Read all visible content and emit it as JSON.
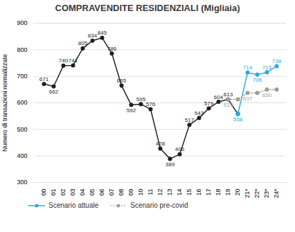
{
  "chart_data": {
    "type": "line",
    "title": "COMPRAVENDITE RESIDENZIALI (Migliaia)",
    "ylabel": "Numero di transazioni normalizzate",
    "categories": [
      "00",
      "01",
      "02",
      "03",
      "04",
      "05",
      "06",
      "07",
      "08",
      "09",
      "10",
      "11",
      "12",
      "13",
      "14",
      "15",
      "16",
      "17",
      "18",
      "19",
      "20",
      "21*",
      "22*",
      "23*",
      "24*"
    ],
    "ylim": [
      300,
      900
    ],
    "yticks": [
      300,
      400,
      500,
      600,
      700,
      800,
      900
    ],
    "grid": true,
    "legend": "bottom",
    "data_labels": true,
    "series": [
      {
        "color": "#231f20",
        "marker": "circle",
        "line_style": "solid",
        "values": [
          671,
          662,
          740,
          741,
          805,
          834,
          845,
          786,
          665,
          592,
          595,
          576,
          428,
          389,
          406,
          517,
          543,
          579,
          604,
          613,
          558,
          null,
          null,
          null,
          null
        ],
        "value_labels": [
          "671",
          "662",
          "740",
          "741",
          "805",
          "834",
          "845",
          "786",
          "665",
          "592",
          "595",
          "576",
          "428",
          "389",
          "406",
          "517",
          "543",
          "579",
          "604",
          "613",
          null,
          null,
          null,
          null,
          null
        ]
      },
      {
        "name": "Scenario attuale",
        "color": "#29abe2",
        "marker": "circle",
        "line_style": "solid",
        "values": [
          null,
          null,
          null,
          null,
          null,
          null,
          null,
          null,
          null,
          null,
          null,
          null,
          null,
          null,
          null,
          null,
          null,
          null,
          null,
          null,
          558,
          714,
          706,
          715,
          738
        ],
        "value_labels": [
          null,
          null,
          null,
          null,
          null,
          null,
          null,
          null,
          null,
          null,
          null,
          null,
          null,
          null,
          null,
          null,
          null,
          null,
          null,
          null,
          "558",
          "714",
          "706",
          "715",
          "738"
        ]
      },
      {
        "name": "Scenario pre-covid",
        "color": "#9d9d9c",
        "marker": "circle",
        "line_style": "dotted",
        "values": [
          null,
          null,
          null,
          null,
          null,
          null,
          null,
          null,
          null,
          null,
          null,
          null,
          null,
          null,
          null,
          null,
          null,
          null,
          null,
          613,
          613,
          637,
          637,
          650,
          650
        ],
        "value_labels": [
          null,
          null,
          null,
          null,
          null,
          null,
          null,
          null,
          null,
          null,
          null,
          null,
          null,
          null,
          null,
          null,
          null,
          null,
          null,
          "613",
          null,
          "637",
          null,
          "650",
          null
        ]
      }
    ]
  }
}
